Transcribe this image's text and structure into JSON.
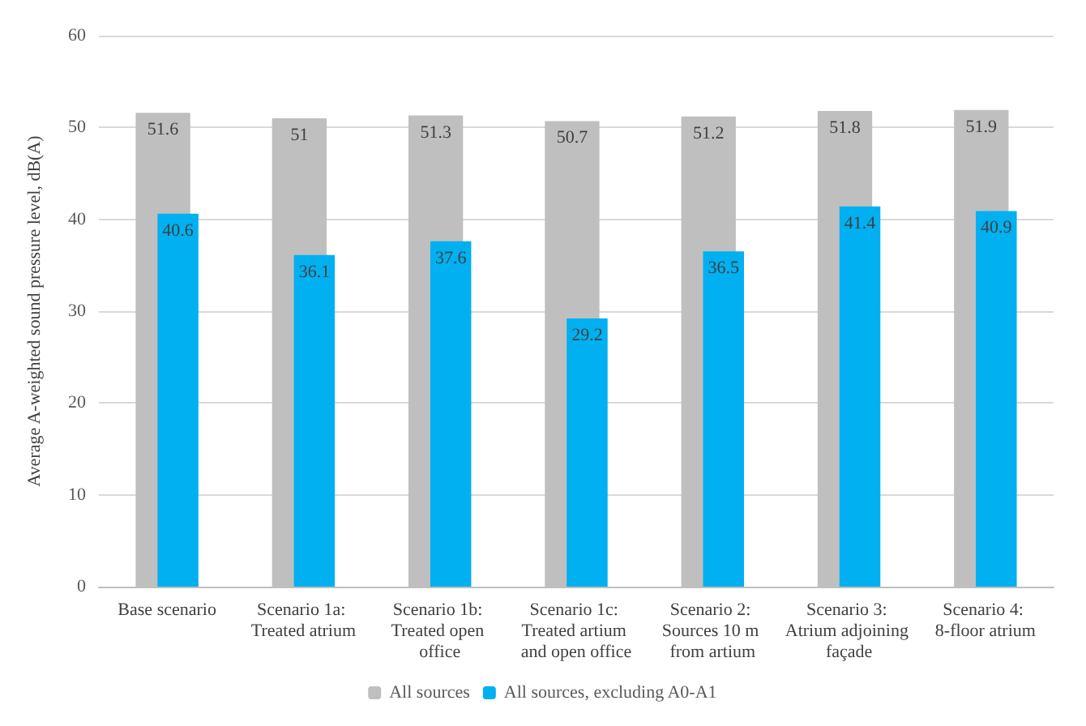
{
  "chart_data": {
    "type": "bar",
    "ylabel": "Average A-weighted sound pressure level, dB(A)",
    "categories": [
      "Base scenario",
      "Scenario 1a: Treated atrium",
      "Scenario 1b: Treated open office",
      "Scenario 1c: Treated artium and open office",
      "Scenario 2: Sources 10 m from artium",
      "Scenario 3: Atrium adjoining façade",
      "Scenario 4: 8-floor atrium"
    ],
    "series": [
      {
        "name": "All sources",
        "color": "#bfbfbf",
        "values": [
          51.6,
          51,
          51.3,
          50.7,
          51.2,
          51.8,
          51.9
        ]
      },
      {
        "name": "All sources, excluding A0-A1",
        "color": "#00b0f0",
        "values": [
          40.6,
          36.1,
          37.6,
          29.2,
          36.5,
          41.4,
          40.9
        ]
      }
    ],
    "ylim": [
      0,
      60
    ],
    "yticks": [
      0,
      10,
      20,
      30,
      40,
      50,
      60
    ],
    "grid": "y",
    "legend": "bottom",
    "data_labels": true
  }
}
